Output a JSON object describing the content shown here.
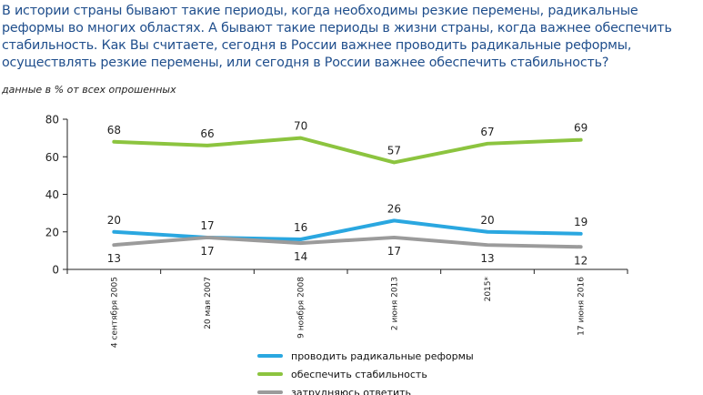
{
  "header": {
    "question": "В истории страны бывают такие периоды, когда необходимы резкие перемены, радикальные реформы во многих областях. А бывают такие периоды в жизни страны, когда важнее обеспечить стабильность. Как Вы считаете, сегодня в России важнее проводить радикальные реформы, осуществлять резкие перемены, или сегодня в России важнее обеспечить стабильность?",
    "note": "данные в % от всех опрошенных"
  },
  "chart_data": {
    "type": "line",
    "categories": [
      "4 сентября 2005",
      "20 мая 2007",
      "9 ноября 2008",
      "2 июня 2013",
      "2015*",
      "17 июня 2016"
    ],
    "ylim": [
      0,
      80
    ],
    "yticks": [
      0,
      20,
      40,
      60,
      80
    ],
    "grid": false,
    "legend_position": "bottom",
    "series": [
      {
        "name": "проводить радикальные реформы",
        "color": "#2aa7e0",
        "values": [
          20,
          17,
          16,
          26,
          20,
          19
        ],
        "label_position": "above"
      },
      {
        "name": "обеспечить стабильность",
        "color": "#8cc43f",
        "values": [
          68,
          66,
          70,
          57,
          67,
          69
        ],
        "label_position": "above"
      },
      {
        "name": "затрудняюсь ответить",
        "color": "#9b9b9b",
        "values": [
          13,
          17,
          14,
          17,
          13,
          12
        ],
        "label_position": "below"
      }
    ]
  }
}
